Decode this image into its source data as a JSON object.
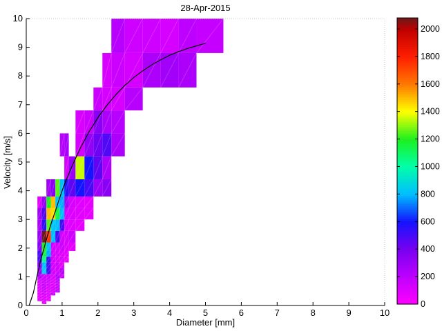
{
  "figure": {
    "background": "#ffffff",
    "axis_color": "#000000",
    "boxtop_color": "#c8c8c8"
  },
  "chart_data": {
    "type": "heatmap",
    "title": "28-Apr-2015",
    "xlabel": "Diameter [mm]",
    "ylabel": "Velocity [m/s]",
    "xlim": [
      0,
      10
    ],
    "ylim": [
      0,
      10
    ],
    "x_ticks": [
      0,
      1,
      2,
      3,
      4,
      5,
      6,
      7,
      8,
      9,
      10
    ],
    "y_ticks": [
      0,
      1,
      2,
      3,
      4,
      5,
      6,
      7,
      8,
      9,
      10
    ],
    "grid": false,
    "legend": "colorbar right",
    "colorbar": {
      "min": 0,
      "max": 2080,
      "ticks": [
        0,
        200,
        400,
        600,
        800,
        1000,
        1200,
        1400,
        1600,
        1800,
        2000
      ],
      "colormap_stops": [
        [
          0,
          "#FF00FF"
        ],
        [
          200,
          "#BE00FF"
        ],
        [
          400,
          "#7800F0"
        ],
        [
          600,
          "#1414FF"
        ],
        [
          800,
          "#00BEFF"
        ],
        [
          1000,
          "#00FFAA"
        ],
        [
          1200,
          "#1EF01E"
        ],
        [
          1400,
          "#FFFF00"
        ],
        [
          1600,
          "#FF7800"
        ],
        [
          1800,
          "#FF1E00"
        ],
        [
          2000,
          "#BE0000"
        ],
        [
          2080,
          "#6E1919"
        ]
      ]
    },
    "diameter_bin_edges": [
      0.312,
      0.437,
      0.562,
      0.687,
      0.812,
      0.937,
      1.062,
      1.187,
      1.375,
      1.625,
      1.875,
      2.125,
      2.375,
      2.75,
      3.25,
      3.75,
      4.25,
      4.75,
      5.5
    ],
    "velocity_bin_edges": [
      0.05,
      0.15,
      0.25,
      0.35,
      0.45,
      0.55,
      0.65,
      0.75,
      0.85,
      0.95,
      1.1,
      1.3,
      1.5,
      1.7,
      1.9,
      2.2,
      2.6,
      3.0,
      3.4,
      3.8,
      4.4,
      5.2,
      6.0,
      6.8,
      7.6,
      8.8,
      10.0
    ],
    "cells": [
      [
        0.437,
        0.562,
        0.05,
        0.15,
        70
      ],
      [
        0.312,
        0.437,
        0.15,
        0.25,
        80
      ],
      [
        0.437,
        0.562,
        0.15,
        0.25,
        90
      ],
      [
        0.562,
        0.687,
        0.15,
        0.25,
        80
      ],
      [
        0.312,
        0.437,
        0.25,
        0.35,
        80
      ],
      [
        0.437,
        0.562,
        0.25,
        0.35,
        100
      ],
      [
        0.562,
        0.687,
        0.25,
        0.35,
        90
      ],
      [
        0.312,
        0.437,
        0.35,
        0.45,
        90
      ],
      [
        0.437,
        0.562,
        0.35,
        0.45,
        120
      ],
      [
        0.562,
        0.687,
        0.35,
        0.45,
        100
      ],
      [
        0.687,
        0.812,
        0.35,
        0.45,
        150
      ],
      [
        0.312,
        0.437,
        0.45,
        0.55,
        90
      ],
      [
        0.437,
        0.562,
        0.45,
        0.55,
        130
      ],
      [
        0.562,
        0.687,
        0.45,
        0.55,
        100
      ],
      [
        0.687,
        0.812,
        0.45,
        0.55,
        120
      ],
      [
        0.812,
        0.937,
        0.45,
        0.55,
        200
      ],
      [
        0.312,
        0.437,
        0.55,
        0.65,
        100
      ],
      [
        0.437,
        0.562,
        0.55,
        0.65,
        150
      ],
      [
        0.562,
        0.687,
        0.55,
        0.65,
        100
      ],
      [
        0.687,
        0.812,
        0.55,
        0.65,
        130
      ],
      [
        0.812,
        0.937,
        0.55,
        0.65,
        180
      ],
      [
        0.312,
        0.437,
        0.65,
        0.75,
        100
      ],
      [
        0.437,
        0.562,
        0.65,
        0.75,
        160
      ],
      [
        0.562,
        0.687,
        0.65,
        0.75,
        130
      ],
      [
        0.687,
        0.812,
        0.65,
        0.75,
        90
      ],
      [
        0.812,
        0.937,
        0.65,
        0.75,
        150
      ],
      [
        0.312,
        0.437,
        0.75,
        0.85,
        120
      ],
      [
        0.437,
        0.562,
        0.75,
        0.85,
        150
      ],
      [
        0.562,
        0.687,
        0.75,
        0.85,
        130
      ],
      [
        0.687,
        0.812,
        0.75,
        0.85,
        100
      ],
      [
        0.812,
        0.937,
        0.75,
        0.85,
        180
      ],
      [
        0.312,
        0.437,
        0.85,
        0.95,
        120
      ],
      [
        0.437,
        0.562,
        0.85,
        0.95,
        160
      ],
      [
        0.562,
        0.687,
        0.85,
        0.95,
        150
      ],
      [
        0.687,
        0.812,
        0.85,
        0.95,
        100
      ],
      [
        0.812,
        0.937,
        0.85,
        0.95,
        200
      ],
      [
        0.312,
        0.437,
        0.95,
        1.1,
        250
      ],
      [
        0.437,
        0.562,
        0.95,
        1.1,
        130
      ],
      [
        0.562,
        0.687,
        0.95,
        1.1,
        160
      ],
      [
        0.687,
        0.812,
        0.95,
        1.1,
        100
      ],
      [
        0.812,
        0.937,
        0.95,
        1.1,
        220
      ],
      [
        0.937,
        1.062,
        0.95,
        1.1,
        150
      ],
      [
        0.312,
        0.437,
        1.1,
        1.3,
        300
      ],
      [
        0.437,
        0.562,
        1.1,
        1.3,
        850
      ],
      [
        0.562,
        0.687,
        1.1,
        1.3,
        500
      ],
      [
        0.687,
        0.812,
        1.1,
        1.3,
        130
      ],
      [
        0.812,
        0.937,
        1.1,
        1.3,
        130
      ],
      [
        0.937,
        1.062,
        1.1,
        1.3,
        200
      ],
      [
        0.312,
        0.437,
        1.3,
        1.5,
        350
      ],
      [
        0.437,
        0.562,
        1.3,
        1.5,
        800
      ],
      [
        0.562,
        0.687,
        1.3,
        1.5,
        500
      ],
      [
        0.687,
        0.812,
        1.3,
        1.5,
        130
      ],
      [
        0.812,
        0.937,
        1.3,
        1.5,
        150
      ],
      [
        0.937,
        1.062,
        1.3,
        1.5,
        80
      ],
      [
        0.312,
        0.437,
        1.5,
        1.7,
        480
      ],
      [
        0.437,
        0.562,
        1.5,
        1.7,
        1050
      ],
      [
        0.562,
        0.687,
        1.5,
        1.7,
        520
      ],
      [
        0.687,
        0.812,
        1.5,
        1.7,
        130
      ],
      [
        0.812,
        0.937,
        1.5,
        1.7,
        100
      ],
      [
        0.937,
        1.062,
        1.5,
        1.7,
        100
      ],
      [
        1.062,
        1.187,
        1.5,
        1.7,
        70
      ],
      [
        0.312,
        0.437,
        1.7,
        1.9,
        500
      ],
      [
        0.437,
        0.562,
        1.7,
        1.9,
        1150
      ],
      [
        0.562,
        0.687,
        1.7,
        1.9,
        780
      ],
      [
        0.687,
        0.812,
        1.7,
        1.9,
        130
      ],
      [
        0.812,
        0.937,
        1.7,
        1.9,
        120
      ],
      [
        0.937,
        1.062,
        1.7,
        1.9,
        100
      ],
      [
        1.062,
        1.187,
        1.7,
        1.9,
        80
      ],
      [
        0.312,
        0.437,
        1.9,
        2.2,
        350
      ],
      [
        0.437,
        0.562,
        1.9,
        2.2,
        1200
      ],
      [
        0.562,
        0.687,
        1.9,
        2.2,
        800
      ],
      [
        0.687,
        0.812,
        1.9,
        2.2,
        130
      ],
      [
        0.812,
        0.937,
        1.9,
        2.2,
        120
      ],
      [
        0.937,
        1.062,
        1.9,
        2.2,
        150
      ],
      [
        1.062,
        1.187,
        1.9,
        2.2,
        100
      ],
      [
        1.187,
        1.375,
        1.9,
        2.2,
        80
      ],
      [
        0.312,
        0.437,
        2.2,
        2.6,
        300
      ],
      [
        0.437,
        0.562,
        2.2,
        2.6,
        2080
      ],
      [
        0.562,
        0.687,
        2.2,
        2.6,
        1750
      ],
      [
        0.687,
        0.812,
        2.2,
        2.6,
        800
      ],
      [
        0.812,
        0.937,
        2.2,
        2.6,
        500
      ],
      [
        0.937,
        1.062,
        2.2,
        2.6,
        130
      ],
      [
        1.062,
        1.187,
        2.2,
        2.6,
        120
      ],
      [
        1.187,
        1.375,
        2.2,
        2.6,
        150
      ],
      [
        0.312,
        0.437,
        2.6,
        3.0,
        250
      ],
      [
        0.437,
        0.562,
        2.6,
        3.0,
        550
      ],
      [
        0.562,
        0.687,
        2.6,
        3.0,
        1250
      ],
      [
        0.687,
        0.812,
        2.6,
        3.0,
        820
      ],
      [
        0.812,
        0.937,
        2.6,
        3.0,
        800
      ],
      [
        0.937,
        1.062,
        2.6,
        3.0,
        500
      ],
      [
        1.062,
        1.187,
        2.6,
        3.0,
        130
      ],
      [
        1.187,
        1.375,
        2.6,
        3.0,
        100
      ],
      [
        1.375,
        1.625,
        2.6,
        3.0,
        80
      ],
      [
        0.312,
        0.437,
        3.0,
        3.4,
        280
      ],
      [
        0.437,
        0.562,
        3.0,
        3.4,
        480
      ],
      [
        0.562,
        0.687,
        3.0,
        3.4,
        1500
      ],
      [
        0.687,
        0.812,
        3.0,
        3.4,
        1450
      ],
      [
        0.812,
        0.937,
        3.0,
        3.4,
        1150
      ],
      [
        0.937,
        1.062,
        3.0,
        3.4,
        800
      ],
      [
        1.062,
        1.187,
        3.0,
        3.4,
        130
      ],
      [
        1.187,
        1.375,
        3.0,
        3.4,
        110
      ],
      [
        1.375,
        1.625,
        3.0,
        3.4,
        90
      ],
      [
        1.625,
        1.875,
        3.0,
        3.4,
        80
      ],
      [
        0.312,
        0.437,
        3.4,
        3.8,
        100
      ],
      [
        0.437,
        0.562,
        3.4,
        3.8,
        300
      ],
      [
        0.562,
        0.687,
        3.4,
        3.8,
        1200
      ],
      [
        0.687,
        0.812,
        3.4,
        3.8,
        1500
      ],
      [
        0.812,
        0.937,
        3.4,
        3.8,
        820
      ],
      [
        0.937,
        1.062,
        3.4,
        3.8,
        780
      ],
      [
        1.062,
        1.187,
        3.4,
        3.8,
        280
      ],
      [
        1.187,
        1.375,
        3.4,
        3.8,
        120
      ],
      [
        1.375,
        1.625,
        3.4,
        3.8,
        100
      ],
      [
        1.625,
        1.875,
        3.4,
        3.8,
        80
      ],
      [
        0.562,
        0.687,
        3.8,
        4.4,
        280
      ],
      [
        0.687,
        0.812,
        3.8,
        4.4,
        350
      ],
      [
        0.812,
        0.937,
        3.8,
        4.4,
        1250
      ],
      [
        0.937,
        1.062,
        3.8,
        4.4,
        800
      ],
      [
        1.062,
        1.187,
        3.8,
        4.4,
        550
      ],
      [
        1.187,
        1.375,
        3.8,
        4.4,
        450
      ],
      [
        1.375,
        1.625,
        3.8,
        4.4,
        600
      ],
      [
        1.625,
        1.875,
        3.8,
        4.4,
        500
      ],
      [
        1.875,
        2.125,
        3.8,
        4.4,
        300
      ],
      [
        2.125,
        2.375,
        3.8,
        4.4,
        350
      ],
      [
        1.062,
        1.187,
        4.4,
        5.2,
        130
      ],
      [
        1.187,
        1.375,
        4.4,
        5.2,
        300
      ],
      [
        1.375,
        1.625,
        4.4,
        5.2,
        1350
      ],
      [
        1.625,
        1.875,
        4.4,
        5.2,
        600
      ],
      [
        1.875,
        2.125,
        4.4,
        5.2,
        450
      ],
      [
        2.125,
        2.375,
        4.4,
        5.2,
        250
      ],
      [
        0.937,
        1.062,
        5.2,
        6.0,
        220
      ],
      [
        1.062,
        1.187,
        5.2,
        6.0,
        260
      ],
      [
        1.375,
        1.625,
        5.2,
        6.0,
        130
      ],
      [
        1.625,
        1.875,
        5.2,
        6.0,
        320
      ],
      [
        1.875,
        2.125,
        5.2,
        6.0,
        420
      ],
      [
        2.125,
        2.375,
        5.2,
        6.0,
        480
      ],
      [
        2.375,
        2.75,
        5.2,
        6.0,
        250
      ],
      [
        1.375,
        1.625,
        6.0,
        6.8,
        120
      ],
      [
        1.625,
        1.875,
        6.0,
        6.8,
        160
      ],
      [
        1.875,
        2.125,
        6.0,
        6.8,
        350
      ],
      [
        2.125,
        2.375,
        6.0,
        6.8,
        250
      ],
      [
        2.375,
        2.75,
        6.0,
        6.8,
        220
      ],
      [
        1.875,
        2.125,
        6.8,
        7.6,
        160
      ],
      [
        2.125,
        2.375,
        6.8,
        7.6,
        130
      ],
      [
        2.375,
        2.75,
        6.8,
        7.6,
        130
      ],
      [
        2.75,
        3.25,
        6.8,
        7.6,
        220
      ],
      [
        2.125,
        2.375,
        7.6,
        8.8,
        120
      ],
      [
        2.375,
        2.75,
        7.6,
        8.8,
        160
      ],
      [
        2.75,
        3.25,
        7.6,
        8.8,
        130
      ],
      [
        3.25,
        3.75,
        7.6,
        8.8,
        250
      ],
      [
        3.75,
        4.25,
        7.6,
        8.8,
        280
      ],
      [
        4.25,
        4.75,
        7.6,
        8.8,
        250
      ],
      [
        2.375,
        2.75,
        8.8,
        10,
        220
      ],
      [
        2.75,
        3.25,
        8.8,
        10,
        150
      ],
      [
        3.25,
        3.75,
        8.8,
        10,
        150
      ],
      [
        3.75,
        4.25,
        8.8,
        10,
        130
      ],
      [
        4.25,
        4.75,
        8.8,
        10,
        200
      ],
      [
        4.75,
        5.5,
        8.8,
        10,
        180
      ]
    ],
    "curve": {
      "name": "terminal-velocity-fit",
      "color": "#000000",
      "points": [
        [
          0.08,
          0
        ],
        [
          0.2,
          0.45
        ],
        [
          0.3,
          1.03
        ],
        [
          0.4,
          1.57
        ],
        [
          0.5,
          2.02
        ],
        [
          0.6,
          2.46
        ],
        [
          0.7,
          2.88
        ],
        [
          0.8,
          3.24
        ],
        [
          0.9,
          3.63
        ],
        [
          1.0,
          4.0
        ],
        [
          1.1,
          4.33
        ],
        [
          1.25,
          4.78
        ],
        [
          1.4,
          5.2
        ],
        [
          1.5,
          5.46
        ],
        [
          1.75,
          6.05
        ],
        [
          2.0,
          6.55
        ],
        [
          2.25,
          6.98
        ],
        [
          2.5,
          7.35
        ],
        [
          2.75,
          7.67
        ],
        [
          3.0,
          7.95
        ],
        [
          3.25,
          8.18
        ],
        [
          3.5,
          8.39
        ],
        [
          3.75,
          8.56
        ],
        [
          4.0,
          8.72
        ],
        [
          4.25,
          8.85
        ],
        [
          4.5,
          8.96
        ],
        [
          4.75,
          9.05
        ],
        [
          5.0,
          9.14
        ]
      ]
    }
  }
}
